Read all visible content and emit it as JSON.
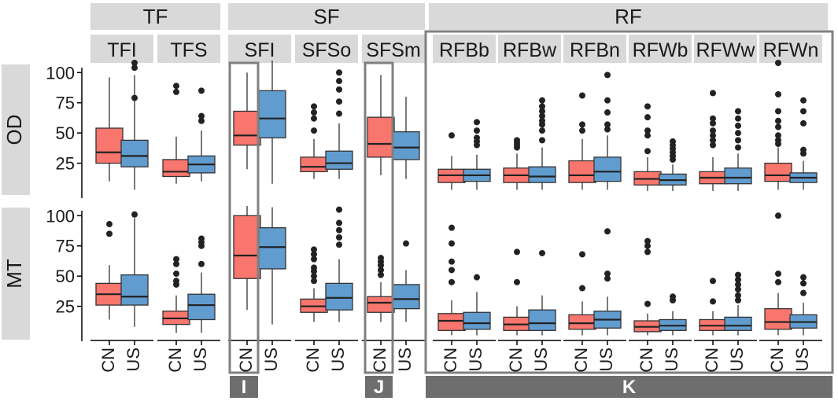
{
  "chart_data": {
    "type": "boxplot",
    "groups": [
      {
        "label": "TF",
        "facets": [
          "TFI",
          "TFS"
        ]
      },
      {
        "label": "SF",
        "facets": [
          "SFI",
          "SFSo",
          "SFSm"
        ]
      },
      {
        "label": "RF",
        "facets": [
          "RFBb",
          "RFBw",
          "RFBn",
          "RFWb",
          "RFWw",
          "RFWn"
        ]
      }
    ],
    "rows": [
      "OD",
      "MT"
    ],
    "categories": [
      "CN",
      "US"
    ],
    "yticks": [
      25,
      50,
      75,
      100
    ],
    "ylim": [
      0,
      110
    ],
    "colors": {
      "CN": "#F8766D",
      "US": "#619CCF"
    },
    "highlight_labels": [
      "I",
      "J",
      "K"
    ],
    "boxes": [
      {
        "row": "OD",
        "facet": "TFI",
        "cat": "CN",
        "q1": 25,
        "median": 34,
        "q3": 54,
        "lo": 10,
        "hi": 96,
        "outliers": []
      },
      {
        "row": "OD",
        "facet": "TFI",
        "cat": "US",
        "q1": 22,
        "median": 31,
        "q3": 44,
        "lo": 3,
        "hi": 98,
        "outliers": [
          79,
          104,
          108
        ]
      },
      {
        "row": "OD",
        "facet": "TFS",
        "cat": "CN",
        "q1": 14,
        "median": 18,
        "q3": 28,
        "lo": 8,
        "hi": 47,
        "outliers": [
          84,
          89
        ]
      },
      {
        "row": "OD",
        "facet": "TFS",
        "cat": "US",
        "q1": 17,
        "median": 24,
        "q3": 31,
        "lo": 10,
        "hi": 52,
        "outliers": [
          60,
          64,
          85
        ]
      },
      {
        "row": "OD",
        "facet": "SFI",
        "cat": "CN",
        "q1": 40,
        "median": 48,
        "q3": 68,
        "lo": 20,
        "hi": 100,
        "outliers": []
      },
      {
        "row": "OD",
        "facet": "SFI",
        "cat": "US",
        "q1": 46,
        "median": 62,
        "q3": 85,
        "lo": 8,
        "hi": 110,
        "outliers": []
      },
      {
        "row": "OD",
        "facet": "SFSo",
        "cat": "CN",
        "q1": 18,
        "median": 22,
        "q3": 30,
        "lo": 12,
        "hi": 45,
        "outliers": [
          52,
          62,
          67,
          72
        ]
      },
      {
        "row": "OD",
        "facet": "SFSo",
        "cat": "US",
        "q1": 20,
        "median": 25,
        "q3": 35,
        "lo": 12,
        "hi": 58,
        "outliers": [
          66,
          76,
          86,
          93,
          100
        ]
      },
      {
        "row": "OD",
        "facet": "SFSm",
        "cat": "CN",
        "q1": 30,
        "median": 41,
        "q3": 63,
        "lo": 15,
        "hi": 98,
        "outliers": []
      },
      {
        "row": "OD",
        "facet": "SFSm",
        "cat": "US",
        "q1": 28,
        "median": 38,
        "q3": 51,
        "lo": 12,
        "hi": 80,
        "outliers": []
      },
      {
        "row": "OD",
        "facet": "RFBb",
        "cat": "CN",
        "q1": 9,
        "median": 15,
        "q3": 20,
        "lo": 3,
        "hi": 31,
        "outliers": [
          48
        ]
      },
      {
        "row": "OD",
        "facet": "RFBb",
        "cat": "US",
        "q1": 10,
        "median": 15,
        "q3": 20,
        "lo": 3,
        "hi": 32,
        "outliers": [
          40,
          43,
          46,
          52,
          59
        ]
      },
      {
        "row": "OD",
        "facet": "RFBw",
        "cat": "CN",
        "q1": 9,
        "median": 15,
        "q3": 21,
        "lo": 3,
        "hi": 33,
        "outliers": [
          38,
          40,
          42,
          44
        ]
      },
      {
        "row": "OD",
        "facet": "RFBw",
        "cat": "US",
        "q1": 9,
        "median": 14,
        "q3": 22,
        "lo": 3,
        "hi": 38,
        "outliers": [
          44,
          52,
          57,
          60,
          64,
          68,
          72,
          77
        ]
      },
      {
        "row": "OD",
        "facet": "RFBn",
        "cat": "CN",
        "q1": 9,
        "median": 15,
        "q3": 27,
        "lo": 3,
        "hi": 45,
        "outliers": [
          52,
          57,
          81
        ]
      },
      {
        "row": "OD",
        "facet": "RFBn",
        "cat": "US",
        "q1": 10,
        "median": 18,
        "q3": 30,
        "lo": 3,
        "hi": 48,
        "outliers": [
          53,
          57,
          67,
          77,
          98
        ]
      },
      {
        "row": "OD",
        "facet": "RFWb",
        "cat": "CN",
        "q1": 7,
        "median": 12,
        "q3": 18,
        "lo": 2,
        "hi": 30,
        "outliers": [
          35,
          48,
          52,
          63,
          72
        ]
      },
      {
        "row": "OD",
        "facet": "RFWb",
        "cat": "US",
        "q1": 7,
        "median": 11,
        "q3": 16,
        "lo": 2,
        "hi": 24,
        "outliers": [
          28,
          31,
          34,
          37,
          40,
          43
        ]
      },
      {
        "row": "OD",
        "facet": "RFWw",
        "cat": "CN",
        "q1": 8,
        "median": 13,
        "q3": 18,
        "lo": 2,
        "hi": 30,
        "outliers": [
          40,
          44,
          48,
          52,
          58,
          62,
          83
        ]
      },
      {
        "row": "OD",
        "facet": "RFWw",
        "cat": "US",
        "q1": 8,
        "median": 13,
        "q3": 21,
        "lo": 2,
        "hi": 33,
        "outliers": [
          38,
          44,
          50,
          56,
          62,
          68
        ]
      },
      {
        "row": "OD",
        "facet": "RFWn",
        "cat": "CN",
        "q1": 10,
        "median": 15,
        "q3": 25,
        "lo": 3,
        "hi": 38,
        "outliers": [
          41,
          44,
          48,
          55,
          60,
          68,
          82,
          108
        ]
      },
      {
        "row": "OD",
        "facet": "RFWn",
        "cat": "US",
        "q1": 9,
        "median": 13,
        "q3": 17,
        "lo": 3,
        "hi": 27,
        "outliers": [
          33,
          36,
          58,
          68,
          77
        ]
      },
      {
        "row": "MT",
        "facet": "TFI",
        "cat": "CN",
        "q1": 26,
        "median": 35,
        "q3": 44,
        "lo": 14,
        "hi": 59,
        "outliers": [
          85,
          93
        ]
      },
      {
        "row": "MT",
        "facet": "TFI",
        "cat": "US",
        "q1": 26,
        "median": 33,
        "q3": 51,
        "lo": 8,
        "hi": 98,
        "outliers": [
          101
        ]
      },
      {
        "row": "MT",
        "facet": "TFS",
        "cat": "CN",
        "q1": 10,
        "median": 15,
        "q3": 21,
        "lo": 3,
        "hi": 34,
        "outliers": [
          43,
          46,
          52,
          60,
          64
        ]
      },
      {
        "row": "MT",
        "facet": "TFS",
        "cat": "US",
        "q1": 14,
        "median": 26,
        "q3": 35,
        "lo": 3,
        "hi": 53,
        "outliers": [
          60,
          75,
          78,
          81
        ]
      },
      {
        "row": "MT",
        "facet": "SFI",
        "cat": "CN",
        "q1": 48,
        "median": 67,
        "q3": 100,
        "lo": 22,
        "hi": 108,
        "outliers": []
      },
      {
        "row": "MT",
        "facet": "SFI",
        "cat": "US",
        "q1": 56,
        "median": 74,
        "q3": 90,
        "lo": 10,
        "hi": 107,
        "outliers": []
      },
      {
        "row": "MT",
        "facet": "SFSo",
        "cat": "CN",
        "q1": 20,
        "median": 25,
        "q3": 31,
        "lo": 12,
        "hi": 40,
        "outliers": [
          46,
          50,
          54,
          57,
          64,
          68,
          72
        ]
      },
      {
        "row": "MT",
        "facet": "SFSo",
        "cat": "US",
        "q1": 22,
        "median": 32,
        "q3": 44,
        "lo": 12,
        "hi": 64,
        "outliers": [
          76,
          82,
          88,
          94,
          105
        ]
      },
      {
        "row": "MT",
        "facet": "SFSm",
        "cat": "CN",
        "q1": 20,
        "median": 28,
        "q3": 33,
        "lo": 12,
        "hi": 45,
        "outliers": [
          51,
          55,
          59,
          62,
          65
        ]
      },
      {
        "row": "MT",
        "facet": "SFSm",
        "cat": "US",
        "q1": 23,
        "median": 31,
        "q3": 43,
        "lo": 12,
        "hi": 55,
        "outliers": [
          77
        ]
      },
      {
        "row": "MT",
        "facet": "RFBb",
        "cat": "CN",
        "q1": 5,
        "median": 13,
        "q3": 19,
        "lo": 1,
        "hi": 30,
        "outliers": [
          45,
          55,
          62,
          77,
          90
        ]
      },
      {
        "row": "MT",
        "facet": "RFBb",
        "cat": "US",
        "q1": 6,
        "median": 11,
        "q3": 20,
        "lo": 1,
        "hi": 37,
        "outliers": [
          49
        ]
      },
      {
        "row": "MT",
        "facet": "RFBw",
        "cat": "CN",
        "q1": 5,
        "median": 10,
        "q3": 16,
        "lo": 1,
        "hi": 25,
        "outliers": [
          45,
          70
        ]
      },
      {
        "row": "MT",
        "facet": "RFBw",
        "cat": "US",
        "q1": 5,
        "median": 11,
        "q3": 22,
        "lo": 1,
        "hi": 34,
        "outliers": [
          69
        ]
      },
      {
        "row": "MT",
        "facet": "RFBn",
        "cat": "CN",
        "q1": 6,
        "median": 11,
        "q3": 18,
        "lo": 1,
        "hi": 29,
        "outliers": [
          40,
          68
        ]
      },
      {
        "row": "MT",
        "facet": "RFBn",
        "cat": "US",
        "q1": 7,
        "median": 14,
        "q3": 21,
        "lo": 1,
        "hi": 33,
        "outliers": [
          48,
          52,
          87
        ]
      },
      {
        "row": "MT",
        "facet": "RFWb",
        "cat": "CN",
        "q1": 4,
        "median": 8,
        "q3": 13,
        "lo": 1,
        "hi": 19,
        "outliers": [
          27,
          70,
          75,
          79
        ]
      },
      {
        "row": "MT",
        "facet": "RFWb",
        "cat": "US",
        "q1": 5,
        "median": 9,
        "q3": 14,
        "lo": 1,
        "hi": 21,
        "outliers": [
          30,
          33
        ]
      },
      {
        "row": "MT",
        "facet": "RFWw",
        "cat": "CN",
        "q1": 5,
        "median": 9,
        "q3": 14,
        "lo": 1,
        "hi": 21,
        "outliers": [
          29,
          46
        ]
      },
      {
        "row": "MT",
        "facet": "RFWw",
        "cat": "US",
        "q1": 5,
        "median": 9,
        "q3": 16,
        "lo": 1,
        "hi": 26,
        "outliers": [
          30,
          34,
          39,
          43,
          47,
          51
        ]
      },
      {
        "row": "MT",
        "facet": "RFWn",
        "cat": "CN",
        "q1": 6,
        "median": 12,
        "q3": 23,
        "lo": 1,
        "hi": 36,
        "outliers": [
          45,
          52,
          100
        ]
      },
      {
        "row": "MT",
        "facet": "RFWn",
        "cat": "US",
        "q1": 7,
        "median": 12,
        "q3": 18,
        "lo": 1,
        "hi": 28,
        "outliers": [
          36,
          44,
          49
        ]
      }
    ]
  }
}
